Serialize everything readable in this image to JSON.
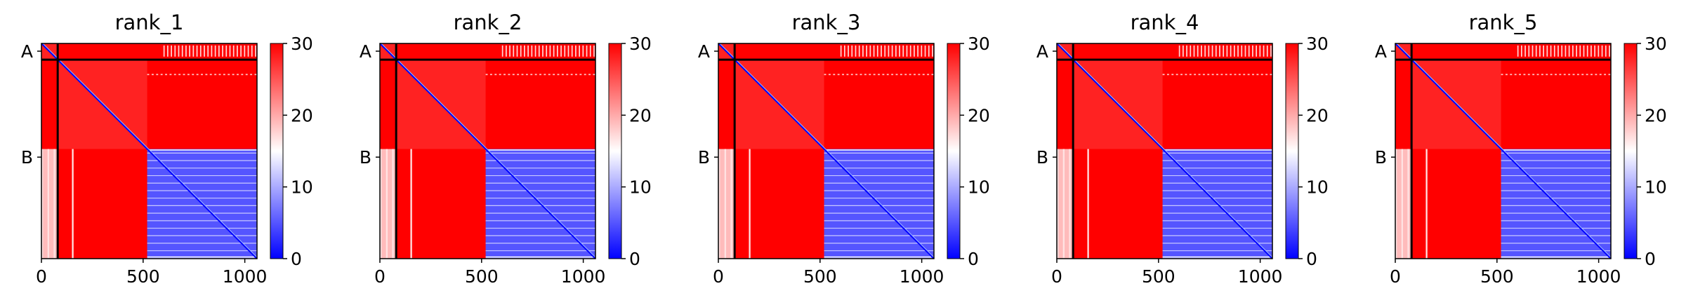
{
  "chart_data": [
    {
      "type": "heatmap",
      "title": "rank_1",
      "chains": [
        "A",
        "B"
      ],
      "chain_tick_values": [
        0,
        560
      ],
      "chain_boundary": 80,
      "n_residues": 1060,
      "xticks": [
        0,
        500,
        1000
      ],
      "colorbar": {
        "ticks": [
          0,
          10,
          20,
          30
        ],
        "min": 0,
        "max": 30,
        "colormap": "bwr"
      },
      "blocks": {
        "chain_A_self": 28,
        "chain_B_residues_0_520_self": 28,
        "chain_B_residues_520_1060_self": 5,
        "inter_domain": 30
      },
      "bright_columns_in_lower_left": [
        0,
        30,
        60,
        150
      ]
    },
    {
      "type": "heatmap",
      "title": "rank_2",
      "chains": [
        "A",
        "B"
      ],
      "chain_tick_values": [
        0,
        560
      ],
      "chain_boundary": 80,
      "n_residues": 1060,
      "xticks": [
        0,
        500,
        1000
      ],
      "colorbar": {
        "ticks": [
          0,
          10,
          20,
          30
        ],
        "min": 0,
        "max": 30,
        "colormap": "bwr"
      },
      "blocks": {
        "chain_A_self": 28,
        "chain_B_residues_0_520_self": 28,
        "chain_B_residues_520_1060_self": 5,
        "inter_domain": 30
      },
      "bright_columns_in_lower_left": [
        0,
        30,
        60,
        150
      ]
    },
    {
      "type": "heatmap",
      "title": "rank_3",
      "chains": [
        "A",
        "B"
      ],
      "chain_tick_values": [
        0,
        560
      ],
      "chain_boundary": 80,
      "n_residues": 1060,
      "xticks": [
        0,
        500,
        1000
      ],
      "colorbar": {
        "ticks": [
          0,
          10,
          20,
          30
        ],
        "min": 0,
        "max": 30,
        "colormap": "bwr"
      },
      "blocks": {
        "chain_A_self": 28,
        "chain_B_residues_0_520_self": 28,
        "chain_B_residues_520_1060_self": 5,
        "inter_domain": 30
      },
      "bright_columns_in_lower_left": [
        0,
        30,
        60,
        150
      ]
    },
    {
      "type": "heatmap",
      "title": "rank_4",
      "chains": [
        "A",
        "B"
      ],
      "chain_tick_values": [
        0,
        560
      ],
      "chain_boundary": 80,
      "n_residues": 1060,
      "xticks": [
        0,
        500,
        1000
      ],
      "colorbar": {
        "ticks": [
          0,
          10,
          20,
          30
        ],
        "min": 0,
        "max": 30,
        "colormap": "bwr"
      },
      "blocks": {
        "chain_A_self": 28,
        "chain_B_residues_0_520_self": 28,
        "chain_B_residues_520_1060_self": 5,
        "inter_domain": 30
      },
      "bright_columns_in_lower_left": [
        0,
        30,
        60,
        150
      ]
    },
    {
      "type": "heatmap",
      "title": "rank_5",
      "chains": [
        "A",
        "B"
      ],
      "chain_tick_values": [
        0,
        560
      ],
      "chain_boundary": 80,
      "n_residues": 1060,
      "xticks": [
        0,
        500,
        1000
      ],
      "colorbar": {
        "ticks": [
          0,
          10,
          20,
          30
        ],
        "min": 0,
        "max": 30,
        "colormap": "bwr"
      },
      "blocks": {
        "chain_A_self": 28,
        "chain_B_residues_0_520_self": 28,
        "chain_B_residues_520_1060_self": 5,
        "inter_domain": 30
      },
      "bright_columns_in_lower_left": [
        0,
        30,
        60,
        150
      ]
    }
  ],
  "colors": {
    "low": "#0000ff",
    "mid": "#ffffff",
    "high": "#ff0000",
    "divider": "#000000",
    "axis": "#000000"
  }
}
